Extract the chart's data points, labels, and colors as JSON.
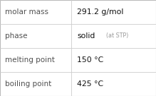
{
  "rows": [
    {
      "label": "molar mass",
      "value": "291.2 g/mol",
      "value2": null
    },
    {
      "label": "phase",
      "value": "solid",
      "value2": "(at STP)"
    },
    {
      "label": "melting point",
      "value": "150 °C",
      "value2": null
    },
    {
      "label": "boiling point",
      "value": "425 °C",
      "value2": null
    }
  ],
  "background_color": "#f8f8f8",
  "cell_bg_color": "#ffffff",
  "border_color": "#bbbbbb",
  "text_color_label": "#505050",
  "text_color_value": "#111111",
  "text_color_value2": "#999999",
  "divider_color": "#cccccc",
  "col_split": 0.455,
  "label_fontsize": 7.5,
  "value_fontsize": 7.8,
  "value2_fontsize": 5.8,
  "font_family": "DejaVu Sans"
}
